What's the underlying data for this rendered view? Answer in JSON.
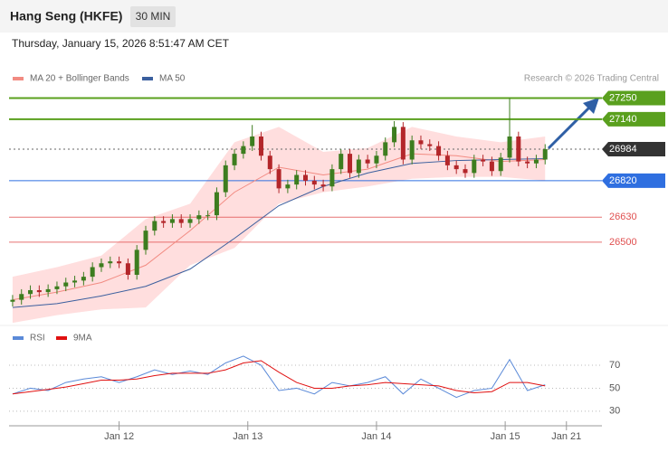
{
  "header": {
    "title": "Hang Seng (HKFE)",
    "interval": "30 MIN",
    "timestamp": "Thursday, January 15, 2026 8:51:47 AM CET",
    "credit": "Research © 2026 Trading Central"
  },
  "chart_data": [
    {
      "type": "candlestick",
      "x": [
        0,
        1,
        2,
        3,
        4,
        5,
        6,
        7,
        8,
        9,
        10,
        11,
        12,
        13,
        14,
        15,
        16,
        17,
        18,
        19,
        20,
        21,
        22,
        23,
        24,
        25,
        26,
        27,
        28,
        29,
        30,
        31,
        32,
        33,
        34,
        35,
        36,
        37,
        38,
        39,
        40,
        41,
        42,
        43,
        44,
        45,
        46,
        47,
        48,
        49,
        50,
        51,
        52,
        53,
        54,
        55,
        56,
        57,
        58,
        59,
        60
      ],
      "open": [
        26190,
        26200,
        26230,
        26250,
        26240,
        26255,
        26270,
        26290,
        26300,
        26320,
        26370,
        26390,
        26400,
        26390,
        26330,
        26460,
        26560,
        26610,
        26600,
        26620,
        26600,
        26620,
        26640,
        26640,
        26760,
        26900,
        26960,
        27000,
        27050,
        26950,
        26880,
        26780,
        26800,
        26850,
        26820,
        26800,
        26790,
        26880,
        26960,
        26860,
        26930,
        26910,
        26950,
        27020,
        27100,
        26930,
        27030,
        27010,
        27000,
        26950,
        26900,
        26880,
        26860,
        26930,
        26920,
        26870,
        26940,
        27050,
        26920,
        26910,
        26930
      ],
      "high": [
        26225,
        26255,
        26275,
        26275,
        26280,
        26295,
        26315,
        26325,
        26345,
        26395,
        26415,
        26425,
        26425,
        26415,
        26485,
        26585,
        26635,
        26635,
        26645,
        26645,
        26645,
        26665,
        26665,
        26785,
        26925,
        26985,
        27025,
        27110,
        27075,
        26975,
        26905,
        26825,
        26875,
        26875,
        26845,
        26825,
        26905,
        26985,
        26985,
        26955,
        26955,
        26975,
        27045,
        27130,
        27125,
        27055,
        27055,
        27035,
        27025,
        26975,
        26925,
        26905,
        26955,
        26955,
        26945,
        26965,
        27250,
        27075,
        26945,
        26955,
        27010
      ],
      "low": [
        26165,
        26175,
        26205,
        26215,
        26215,
        26230,
        26245,
        26265,
        26275,
        26295,
        26345,
        26365,
        26365,
        26305,
        26305,
        26435,
        26535,
        26575,
        26575,
        26575,
        26575,
        26595,
        26615,
        26615,
        26735,
        26875,
        26935,
        26975,
        26925,
        26855,
        26755,
        26755,
        26775,
        26795,
        26775,
        26765,
        26765,
        26855,
        26835,
        26835,
        26885,
        26885,
        26925,
        26995,
        26905,
        26905,
        26985,
        26975,
        26925,
        26875,
        26855,
        26835,
        26835,
        26895,
        26845,
        26845,
        26915,
        26895,
        26885,
        26885,
        26905
      ],
      "close": [
        26200,
        26230,
        26250,
        26240,
        26255,
        26270,
        26290,
        26300,
        26320,
        26370,
        26390,
        26400,
        26390,
        26330,
        26460,
        26560,
        26610,
        26600,
        26620,
        26600,
        26620,
        26640,
        26640,
        26760,
        26900,
        26960,
        27000,
        27050,
        26950,
        26880,
        26780,
        26800,
        26850,
        26820,
        26800,
        26790,
        26880,
        26960,
        26860,
        26930,
        26910,
        26950,
        27020,
        27100,
        26930,
        27030,
        27010,
        27000,
        26950,
        26900,
        26880,
        26860,
        26930,
        26920,
        26870,
        26940,
        27050,
        26920,
        26910,
        26930,
        26984
      ],
      "up_color": "#3d7d1f",
      "down_color": "#b3262a",
      "xlim": [
        -0.4,
        66.4
      ],
      "ylim": [
        26090,
        27290
      ],
      "bands": {
        "x": [
          0,
          5,
          10,
          15,
          20,
          25,
          30,
          35,
          40,
          45,
          50,
          55,
          60
        ],
        "upper": [
          26320,
          26370,
          26430,
          26620,
          26700,
          27020,
          27100,
          26970,
          26990,
          27100,
          27050,
          27020,
          27050
        ],
        "lower": [
          26080,
          26120,
          26150,
          26160,
          26380,
          26470,
          26700,
          26760,
          26790,
          26830,
          26840,
          26840,
          26820
        ],
        "color": "#ffdede"
      },
      "series": [
        {
          "name": "MA 20 + Bollinger Bands",
          "color": "#f28b82",
          "x": [
            0,
            5,
            10,
            15,
            20,
            25,
            30,
            35,
            40,
            45,
            50,
            55,
            60
          ],
          "values": [
            26200,
            26240,
            26290,
            26380,
            26560,
            26760,
            26890,
            26850,
            26880,
            26960,
            26950,
            26920,
            26930
          ]
        },
        {
          "name": "MA 50",
          "color": "#3b5f9e",
          "x": [
            0,
            5,
            10,
            15,
            20,
            25,
            30,
            35,
            40,
            45,
            50,
            55,
            60
          ],
          "values": [
            26160,
            26180,
            26220,
            26270,
            26360,
            26520,
            26690,
            26790,
            26860,
            26910,
            26925,
            26930,
            26935
          ]
        }
      ],
      "levels": [
        {
          "value": 27250,
          "color": "#5aa01e",
          "kind": "box"
        },
        {
          "value": 27140,
          "color": "#5aa01e",
          "kind": "box"
        },
        {
          "value": 26984,
          "color": "#333333",
          "kind": "current"
        },
        {
          "value": 26820,
          "color": "#2f6fe0",
          "kind": "box"
        },
        {
          "value": 26630,
          "color": "#e05050",
          "kind": "text"
        },
        {
          "value": 26500,
          "color": "#e05050",
          "kind": "text"
        }
      ]
    },
    {
      "type": "line",
      "x": [
        0,
        2,
        4,
        6,
        8,
        10,
        12,
        14,
        16,
        18,
        20,
        22,
        24,
        26,
        28,
        30,
        32,
        34,
        36,
        38,
        40,
        42,
        44,
        46,
        48,
        50,
        52,
        54,
        56,
        58,
        60
      ],
      "series": [
        {
          "name": "RSI",
          "color": "#5b8ad8",
          "values": [
            45,
            50,
            48,
            55,
            58,
            60,
            55,
            60,
            66,
            62,
            65,
            62,
            72,
            78,
            70,
            48,
            50,
            45,
            55,
            52,
            55,
            60,
            45,
            58,
            50,
            42,
            48,
            50,
            75,
            48,
            53
          ]
        },
        {
          "name": "9MA",
          "color": "#e01010",
          "values": [
            45,
            47,
            49,
            51,
            54,
            57,
            57,
            58,
            61,
            63,
            63,
            63,
            66,
            72,
            74,
            64,
            55,
            50,
            50,
            52,
            53,
            55,
            54,
            53,
            52,
            48,
            46,
            47,
            55,
            55,
            52
          ]
        }
      ],
      "xlim": [
        -0.4,
        66.4
      ],
      "ylim": [
        22,
        85
      ],
      "yticks": [
        30,
        50,
        70
      ],
      "grid": true,
      "xticks": [
        {
          "value": 12,
          "label": "Jan 12"
        },
        {
          "value": 26.5,
          "label": "Jan 13"
        },
        {
          "value": 41,
          "label": "Jan 14"
        },
        {
          "value": 55.5,
          "label": "Jan 15"
        },
        {
          "value": 62.4,
          "label": "Jan 21"
        }
      ]
    }
  ]
}
